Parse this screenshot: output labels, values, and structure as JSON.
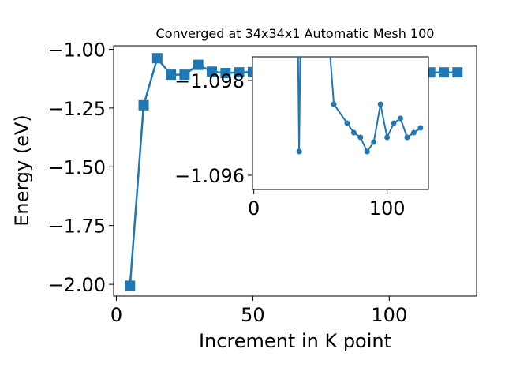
{
  "chart_data": [
    {
      "type": "line",
      "title": "Converged at 34x34x1 Automatic Mesh 100",
      "xlabel": "Increment in K point",
      "ylabel": "Energy (eV)",
      "xlim": [
        -1,
        132
      ],
      "ylim": [
        -2.05,
        -0.985
      ],
      "xticks": [
        0,
        50,
        100
      ],
      "xtick_labels": [
        "0",
        "50",
        "100"
      ],
      "yticks": [
        -2.0,
        -1.75,
        -1.5,
        -1.25,
        -1.0
      ],
      "ytick_labels": [
        "−2.00",
        "−1.75",
        "−1.50",
        "−1.25",
        "−1.00"
      ],
      "grid": false,
      "line_color": "#1f77b4",
      "marker": "square",
      "series": [
        {
          "x": [
            5,
            10,
            15,
            20,
            25,
            30,
            35,
            40,
            45,
            50,
            55,
            60,
            65,
            70,
            75,
            80,
            85,
            90,
            95,
            100,
            105,
            110,
            115,
            120,
            125
          ],
          "y": [
            -2.006,
            -1.238,
            -1.038,
            -1.108,
            -1.108,
            -1.066,
            -1.095,
            -1.101,
            -1.098,
            -1.0968,
            -1.0978,
            -1.099,
            -1.0992,
            -1.0989,
            -1.0991,
            -1.0988,
            -1.0983,
            -1.0982,
            -1.0979,
            -1.0982,
            -1.0985,
            -1.0987,
            -1.0984,
            -1.0982,
            -1.0981
          ]
        }
      ]
    },
    {
      "type": "line",
      "title": "",
      "xlabel": "",
      "ylabel": "",
      "xlim": [
        -1,
        131
      ],
      "ylim": [
        -1.0957,
        -1.0985
      ],
      "xticks": [
        0,
        100
      ],
      "xtick_labels": [
        "0",
        "100"
      ],
      "yticks": [
        -1.098,
        -1.096
      ],
      "ytick_labels": [
        "−1.098",
        "−1.096"
      ],
      "grid": false,
      "line_color": "#1f77b4",
      "marker": "circle",
      "series": [
        {
          "x": [
            33,
            34,
            35,
            56,
            60,
            70,
            75,
            80,
            85,
            90,
            95,
            100,
            105,
            110,
            115,
            120,
            125
          ],
          "y": [
            -1.099,
            -1.0965,
            -1.099,
            -1.099,
            -1.0975,
            -1.0971,
            -1.0969,
            -1.0968,
            -1.0965,
            -1.0967,
            -1.0975,
            -1.0968,
            -1.0971,
            -1.0972,
            -1.0968,
            -1.0969,
            -1.097
          ]
        }
      ]
    }
  ]
}
